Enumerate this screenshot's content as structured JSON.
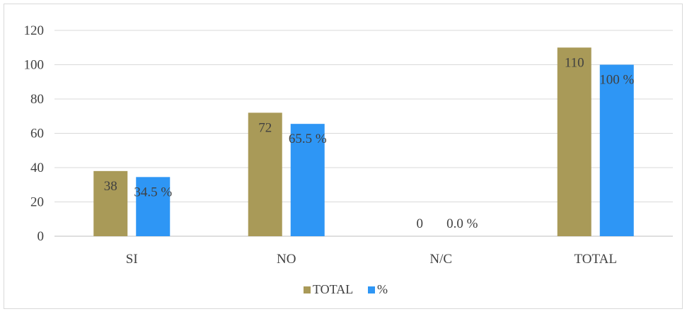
{
  "chart_data": {
    "type": "bar",
    "categories": [
      "SI",
      "NO",
      "N/C",
      "TOTAL"
    ],
    "series": [
      {
        "name": "TOTAL",
        "values": [
          38,
          72,
          0,
          110
        ],
        "labels": [
          "38",
          "72",
          "0",
          "110"
        ],
        "color": "#a99a58"
      },
      {
        "name": "%",
        "values": [
          34.5,
          65.5,
          0.0,
          100
        ],
        "labels": [
          "34.5 %",
          "65.5 %",
          "0.0 %",
          "100 %"
        ],
        "color": "#2e96f5"
      }
    ],
    "ylim": [
      0,
      120
    ],
    "yticks": [
      0,
      20,
      40,
      60,
      80,
      100,
      120
    ],
    "grid": true,
    "legend": "bottom"
  }
}
